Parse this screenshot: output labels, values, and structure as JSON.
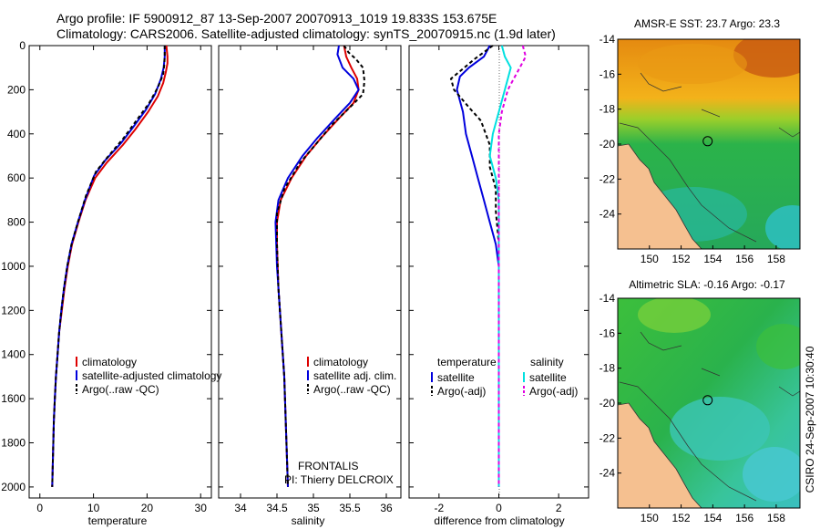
{
  "header": {
    "line1": "Argo profile: IF 5900912_87 13-Sep-2007 20070913_1019 19.833S 153.675E",
    "line2": "Climatology: CARS2006. Satellite-adjusted climatology: synTS_20070915.nc (1.9d later)"
  },
  "side_stamp": "CSIRO 24-Sep-2007 10:30:40",
  "annotations": {
    "line1": "FRONTALIS",
    "line2": "PI: Thierry DELCROIX"
  },
  "colors": {
    "climatology": "#dd0000",
    "satellite": "#0000dd",
    "argo": "#000000",
    "sat_salinity": "#00e0e0",
    "argo_salinity": "#e000e0",
    "land": "#f5c090",
    "ocean_sst": "#22b04a"
  },
  "chart_data": [
    {
      "type": "line",
      "xlabel": "temperature",
      "xlim": [
        -2,
        32
      ],
      "ylim": [
        2050,
        0
      ],
      "xticks": [
        0,
        10,
        20,
        30
      ],
      "yticks": [
        0,
        200,
        400,
        600,
        800,
        1000,
        1200,
        1400,
        1600,
        1800,
        2000
      ],
      "legend": [
        "climatology",
        "satellite-adjusted climatology",
        "Argo(..raw -QC)"
      ],
      "series": [
        {
          "name": "climatology",
          "color": "#dd0000",
          "dash": "",
          "points": [
            [
              23.6,
              0
            ],
            [
              23.8,
              50
            ],
            [
              23.8,
              80
            ],
            [
              23.5,
              120
            ],
            [
              23.0,
              170
            ],
            [
              22.0,
              230
            ],
            [
              20.2,
              300
            ],
            [
              17.8,
              380
            ],
            [
              15.5,
              450
            ],
            [
              12.5,
              530
            ],
            [
              10.3,
              600
            ],
            [
              8.5,
              700
            ],
            [
              7.2,
              800
            ],
            [
              6.0,
              900
            ],
            [
              5.2,
              1000
            ],
            [
              4.6,
              1100
            ],
            [
              4.1,
              1200
            ],
            [
              3.6,
              1300
            ],
            [
              3.3,
              1400
            ],
            [
              3.0,
              1500
            ],
            [
              2.8,
              1600
            ],
            [
              2.6,
              1700
            ],
            [
              2.5,
              1800
            ],
            [
              2.4,
              1900
            ],
            [
              2.3,
              2000
            ]
          ]
        },
        {
          "name": "satellite-adjusted climatology",
          "color": "#0000dd",
          "dash": "",
          "points": [
            [
              23.3,
              0
            ],
            [
              23.3,
              50
            ],
            [
              23.1,
              100
            ],
            [
              22.6,
              150
            ],
            [
              21.5,
              220
            ],
            [
              19.8,
              290
            ],
            [
              17.4,
              370
            ],
            [
              15.2,
              440
            ],
            [
              12.2,
              520
            ],
            [
              10.1,
              590
            ],
            [
              8.4,
              700
            ],
            [
              7.1,
              800
            ],
            [
              5.9,
              900
            ],
            [
              5.1,
              1000
            ],
            [
              4.5,
              1100
            ],
            [
              4.0,
              1200
            ],
            [
              3.6,
              1300
            ],
            [
              3.3,
              1400
            ],
            [
              3.0,
              1500
            ],
            [
              2.8,
              1600
            ],
            [
              2.6,
              1700
            ],
            [
              2.5,
              1800
            ],
            [
              2.4,
              1900
            ],
            [
              2.3,
              2000
            ]
          ]
        },
        {
          "name": "Argo(..raw -QC)",
          "color": "#000000",
          "dash": "4,3",
          "points": [
            [
              23.3,
              0
            ],
            [
              23.3,
              50
            ],
            [
              23.2,
              90
            ],
            [
              23.0,
              130
            ],
            [
              22.0,
              190
            ],
            [
              20.4,
              260
            ],
            [
              18.0,
              340
            ],
            [
              15.6,
              420
            ],
            [
              12.8,
              500
            ],
            [
              10.5,
              570
            ],
            [
              8.6,
              680
            ],
            [
              7.1,
              800
            ],
            [
              5.9,
              900
            ],
            [
              5.1,
              1000
            ],
            [
              4.5,
              1100
            ],
            [
              4.0,
              1200
            ],
            [
              3.6,
              1300
            ],
            [
              3.3,
              1400
            ],
            [
              3.0,
              1500
            ],
            [
              2.8,
              1600
            ],
            [
              2.6,
              1700
            ],
            [
              2.5,
              1800
            ],
            [
              2.4,
              1900
            ],
            [
              2.3,
              2000
            ]
          ]
        }
      ]
    },
    {
      "type": "line",
      "xlabel": "salinity",
      "xlim": [
        33.7,
        36.2
      ],
      "ylim": [
        2050,
        0
      ],
      "xticks": [
        34,
        34.5,
        35,
        35.5,
        36
      ],
      "xticklabels": [
        "34",
        "34.5",
        "35",
        "35.5",
        "36"
      ],
      "yticks": [
        0,
        200,
        400,
        600,
        800,
        1000,
        1200,
        1400,
        1600,
        1800,
        2000
      ],
      "legend": [
        "climatology",
        "satellite adj. clim.",
        "Argo(..raw -QC)"
      ],
      "series": [
        {
          "name": "climatology",
          "color": "#dd0000",
          "dash": "",
          "points": [
            [
              35.42,
              0
            ],
            [
              35.45,
              50
            ],
            [
              35.52,
              100
            ],
            [
              35.6,
              150
            ],
            [
              35.62,
              200
            ],
            [
              35.55,
              260
            ],
            [
              35.35,
              330
            ],
            [
              35.1,
              420
            ],
            [
              34.9,
              500
            ],
            [
              34.7,
              600
            ],
            [
              34.55,
              700
            ],
            [
              34.5,
              800
            ],
            [
              34.5,
              900
            ],
            [
              34.51,
              1000
            ],
            [
              34.52,
              1100
            ],
            [
              34.54,
              1200
            ],
            [
              34.56,
              1300
            ],
            [
              34.58,
              1400
            ],
            [
              34.6,
              1500
            ],
            [
              34.61,
              1600
            ],
            [
              34.62,
              1700
            ],
            [
              34.63,
              1800
            ],
            [
              34.64,
              1900
            ],
            [
              34.65,
              2000
            ]
          ]
        },
        {
          "name": "satellite adj. clim.",
          "color": "#0000dd",
          "dash": "",
          "points": [
            [
              35.35,
              0
            ],
            [
              35.33,
              40
            ],
            [
              35.4,
              100
            ],
            [
              35.55,
              150
            ],
            [
              35.62,
              200
            ],
            [
              35.5,
              260
            ],
            [
              35.3,
              330
            ],
            [
              35.05,
              420
            ],
            [
              34.85,
              500
            ],
            [
              34.65,
              600
            ],
            [
              34.52,
              700
            ],
            [
              34.48,
              800
            ],
            [
              34.49,
              900
            ],
            [
              34.5,
              1000
            ],
            [
              34.52,
              1100
            ],
            [
              34.54,
              1200
            ],
            [
              34.56,
              1300
            ],
            [
              34.58,
              1400
            ],
            [
              34.6,
              1500
            ],
            [
              34.61,
              1600
            ],
            [
              34.62,
              1700
            ],
            [
              34.63,
              1800
            ],
            [
              34.64,
              1900
            ],
            [
              34.65,
              2000
            ]
          ]
        },
        {
          "name": "Argo(..raw -QC)",
          "color": "#000000",
          "dash": "4,3",
          "points": [
            [
              35.42,
              0
            ],
            [
              35.48,
              30
            ],
            [
              35.58,
              60
            ],
            [
              35.68,
              100
            ],
            [
              35.7,
              160
            ],
            [
              35.68,
              220
            ],
            [
              35.5,
              280
            ],
            [
              35.25,
              360
            ],
            [
              35.05,
              440
            ],
            [
              34.82,
              530
            ],
            [
              34.6,
              650
            ],
            [
              34.5,
              760
            ],
            [
              34.5,
              900
            ],
            [
              34.51,
              1000
            ],
            [
              34.52,
              1100
            ],
            [
              34.54,
              1200
            ],
            [
              34.56,
              1300
            ],
            [
              34.58,
              1400
            ],
            [
              34.6,
              1500
            ],
            [
              34.61,
              1600
            ],
            [
              34.62,
              1700
            ],
            [
              34.63,
              1800
            ],
            [
              34.64,
              1900
            ],
            [
              34.65,
              2000
            ]
          ]
        }
      ]
    },
    {
      "type": "line",
      "xlabel": "difference from climatology",
      "xlim": [
        -3,
        3
      ],
      "ylim": [
        2050,
        0
      ],
      "xticks": [
        -2,
        0,
        2
      ],
      "yticks": [
        0,
        200,
        400,
        600,
        800,
        1000,
        1200,
        1400,
        1600,
        1800,
        2000
      ],
      "legend_headers": [
        "temperature",
        "salinity"
      ],
      "legend": [
        "satellite",
        "Argo(-adj)",
        "satellite",
        "Argo(-adj)"
      ],
      "series": [
        {
          "name": "satellite",
          "color": "#0000dd",
          "dash": "",
          "points": [
            [
              -0.3,
              0
            ],
            [
              -0.5,
              50
            ],
            [
              -1.0,
              100
            ],
            [
              -1.3,
              140
            ],
            [
              -1.4,
              200
            ],
            [
              -1.2,
              300
            ],
            [
              -1.1,
              400
            ],
            [
              -0.9,
              500
            ],
            [
              -0.7,
              600
            ],
            [
              -0.5,
              700
            ],
            [
              -0.3,
              800
            ],
            [
              -0.1,
              900
            ],
            [
              0,
              1000
            ],
            [
              0,
              1200
            ],
            [
              0,
              1400
            ],
            [
              0,
              1600
            ],
            [
              0,
              1800
            ],
            [
              0,
              2000
            ]
          ]
        },
        {
          "name": "Argo(-adj)",
          "color": "#000000",
          "dash": "4,3",
          "points": [
            [
              -0.2,
              0
            ],
            [
              -0.8,
              60
            ],
            [
              -1.6,
              150
            ],
            [
              -1.5,
              200
            ],
            [
              -1.0,
              280
            ],
            [
              -0.6,
              340
            ],
            [
              -0.3,
              450
            ],
            [
              -0.3,
              550
            ],
            [
              -0.1,
              650
            ],
            [
              -0.1,
              750
            ],
            [
              0,
              900
            ],
            [
              0,
              1200
            ],
            [
              0,
              1500
            ],
            [
              0,
              1800
            ],
            [
              0,
              2000
            ]
          ]
        },
        {
          "name": "satellite",
          "color": "#00e0e0",
          "dash": "",
          "points": [
            [
              0.1,
              0
            ],
            [
              0.2,
              50
            ],
            [
              0.4,
              100
            ],
            [
              0.3,
              150
            ],
            [
              0.2,
              200
            ],
            [
              0.0,
              300
            ],
            [
              -0.2,
              400
            ],
            [
              -0.3,
              500
            ],
            [
              -0.1,
              600
            ],
            [
              0,
              700
            ],
            [
              0,
              800
            ],
            [
              0,
              1000
            ],
            [
              0,
              1200
            ],
            [
              0,
              1500
            ],
            [
              0,
              1800
            ],
            [
              0,
              2000
            ]
          ]
        },
        {
          "name": "Argo(-adj)",
          "color": "#e000e0",
          "dash": "4,3",
          "points": [
            [
              0.8,
              0
            ],
            [
              0.9,
              50
            ],
            [
              0.7,
              100
            ],
            [
              0.5,
              150
            ],
            [
              0.3,
              200
            ],
            [
              0.1,
              300
            ],
            [
              0,
              400
            ],
            [
              0,
              500
            ],
            [
              0,
              700
            ],
            [
              0,
              1000
            ],
            [
              0,
              1500
            ],
            [
              0,
              2000
            ]
          ]
        }
      ]
    },
    {
      "type": "heatmap",
      "title": "AMSR-E SST: 23.7 Argo: 23.3",
      "xlim": [
        148,
        159.5
      ],
      "ylim": [
        -26,
        -14
      ],
      "xticks": [
        150,
        152,
        154,
        156,
        158
      ],
      "yticks": [
        -14,
        -16,
        -18,
        -20,
        -22,
        -24
      ],
      "marker": {
        "lon": 153.675,
        "lat": -19.833
      }
    },
    {
      "type": "heatmap",
      "title": "Altimetric SLA: -0.16 Argo: -0.17",
      "xlim": [
        148,
        159.5
      ],
      "ylim": [
        -26,
        -14
      ],
      "xticks": [
        150,
        152,
        154,
        156,
        158
      ],
      "yticks": [
        -14,
        -16,
        -18,
        -20,
        -22,
        -24
      ],
      "marker": {
        "lon": 153.675,
        "lat": -19.833
      }
    }
  ]
}
